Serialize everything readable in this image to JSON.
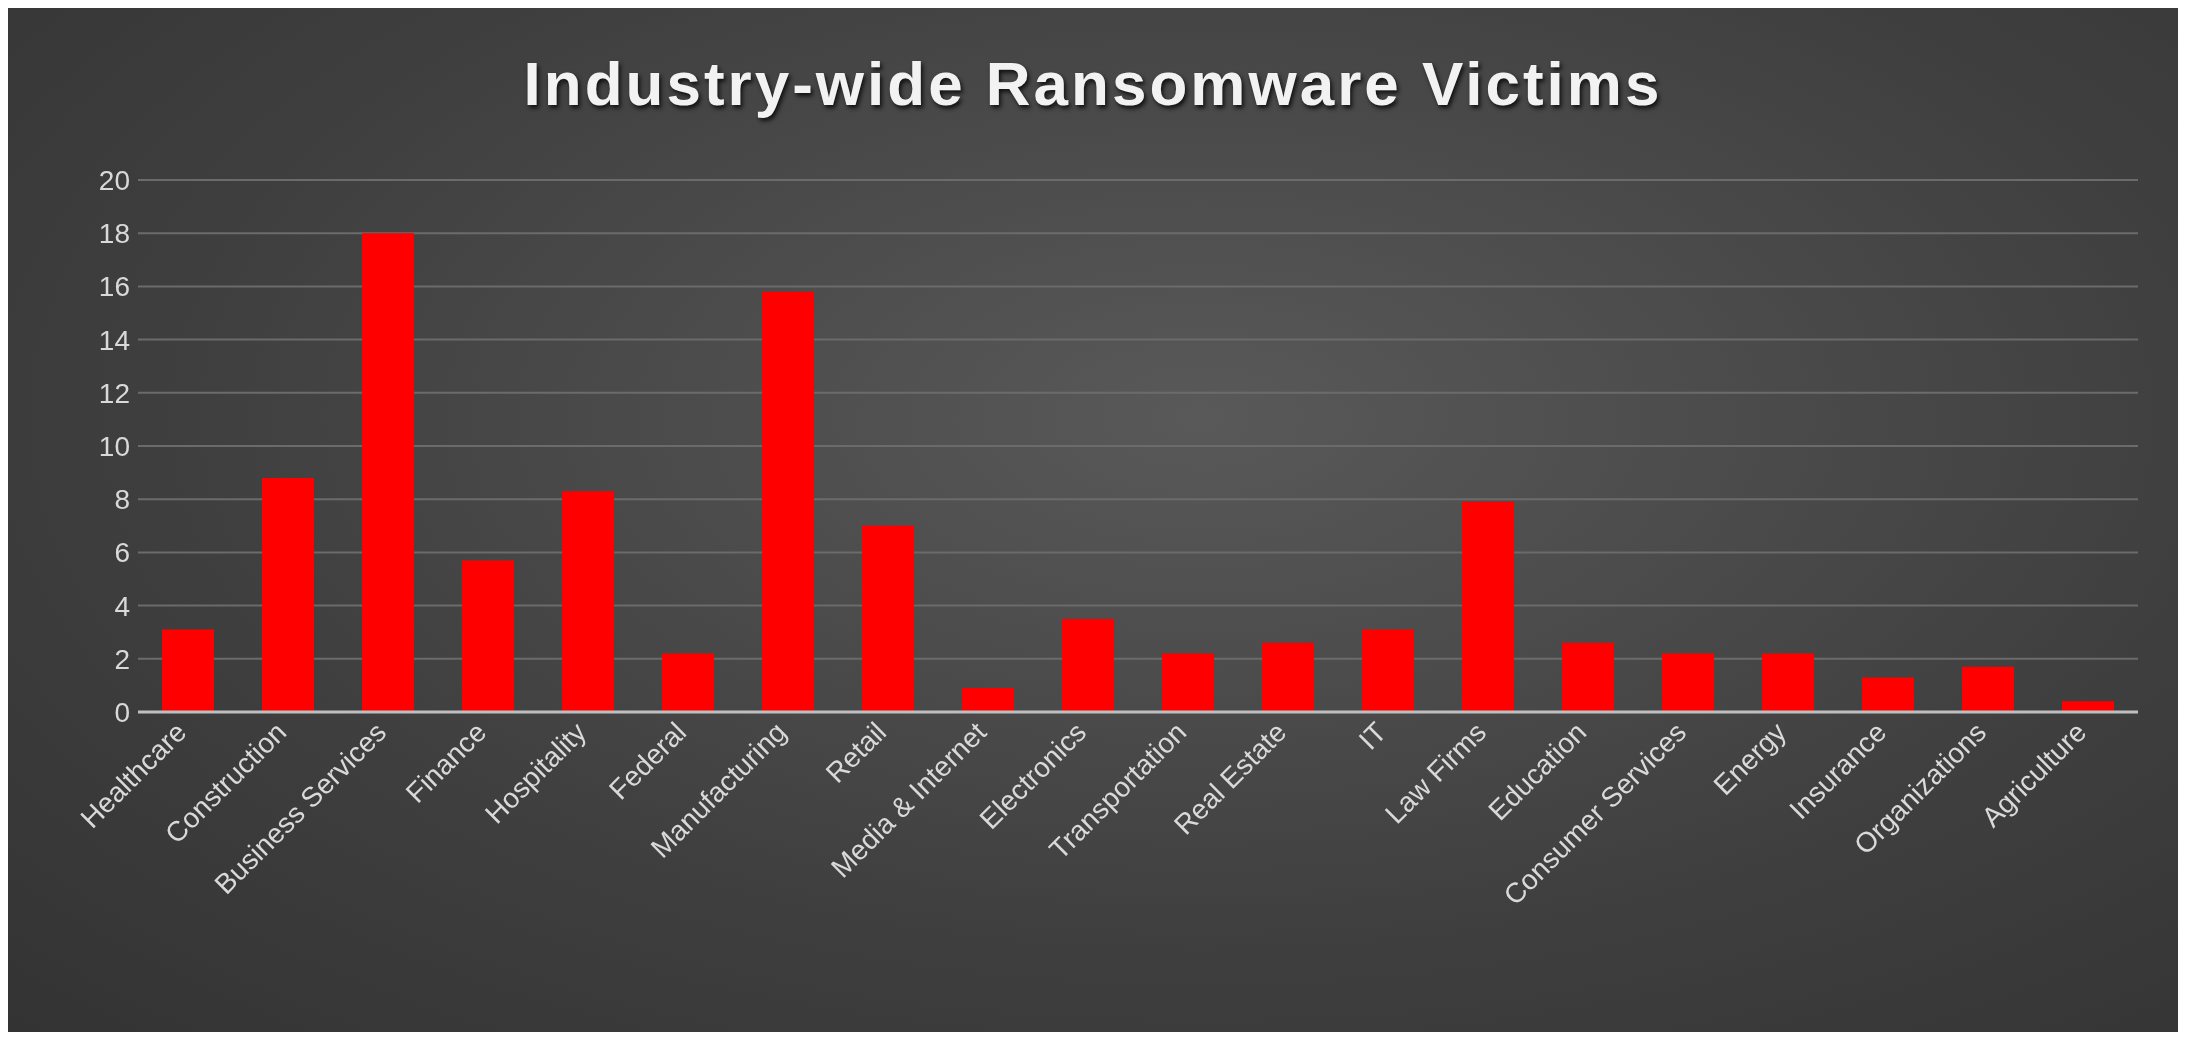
{
  "chart_data": {
    "type": "bar",
    "title": "Industry-wide Ransomware Victims",
    "categories": [
      "Healthcare",
      "Construction",
      "Business Services",
      "Finance",
      "Hospitality",
      "Federal",
      "Manufacturing",
      "Retail",
      "Media & Internet",
      "Electronics",
      "Transportation",
      "Real Estate",
      "IT",
      "Law Firms",
      "Education",
      "Consumer Services",
      "Energy",
      "Insurance",
      "Organizations",
      "Agriculture"
    ],
    "values": [
      3.1,
      8.8,
      18.0,
      5.7,
      8.3,
      2.2,
      15.8,
      7.0,
      0.9,
      3.5,
      2.2,
      2.6,
      3.1,
      7.9,
      2.6,
      2.2,
      2.2,
      1.3,
      1.7,
      0.4
    ],
    "color": "#ff0000",
    "ylim": [
      0,
      20
    ],
    "yticks": [
      0,
      2,
      4,
      6,
      8,
      10,
      12,
      14,
      16,
      18,
      20
    ],
    "grid": "y",
    "legend": false
  }
}
